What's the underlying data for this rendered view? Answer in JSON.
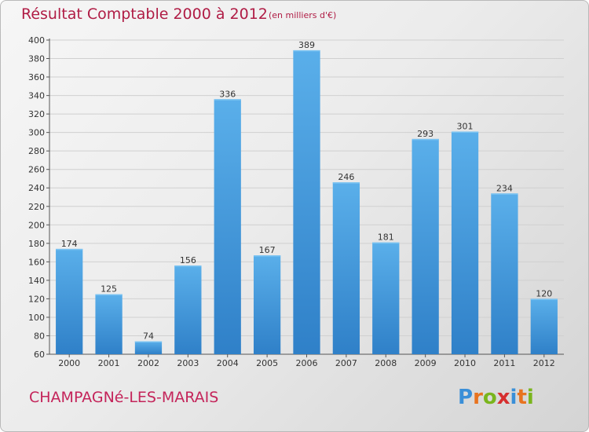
{
  "title": "Résultat Comptable 2000 à 2012",
  "subtitle": "(en milliers d'€)",
  "footer": {
    "city": "CHAMPAGNé-LES-MARAIS"
  },
  "logo": {
    "letters": [
      "P",
      "r",
      "o",
      "x",
      "i",
      "t",
      "i"
    ],
    "colors": [
      "#3a8fd8",
      "#e8731f",
      "#7ab51d",
      "#d62f2f",
      "#3a8fd8",
      "#e8731f",
      "#7ab51d"
    ]
  },
  "colors": {
    "bar": "#3b96dc",
    "bar_light": "#5aafea",
    "title": "#b01c45",
    "grid": "#d0d0d0"
  },
  "chart_data": {
    "type": "bar",
    "categories": [
      "2000",
      "2001",
      "2002",
      "2003",
      "2004",
      "2005",
      "2006",
      "2007",
      "2008",
      "2009",
      "2010",
      "2011",
      "2012"
    ],
    "values": [
      174,
      125,
      74,
      156,
      336,
      167,
      389,
      246,
      181,
      293,
      301,
      234,
      120
    ],
    "ylim": [
      60,
      400
    ],
    "yticks": [
      60,
      80,
      100,
      120,
      140,
      160,
      180,
      200,
      220,
      240,
      260,
      280,
      300,
      320,
      340,
      360,
      380,
      400
    ],
    "grid": true
  }
}
